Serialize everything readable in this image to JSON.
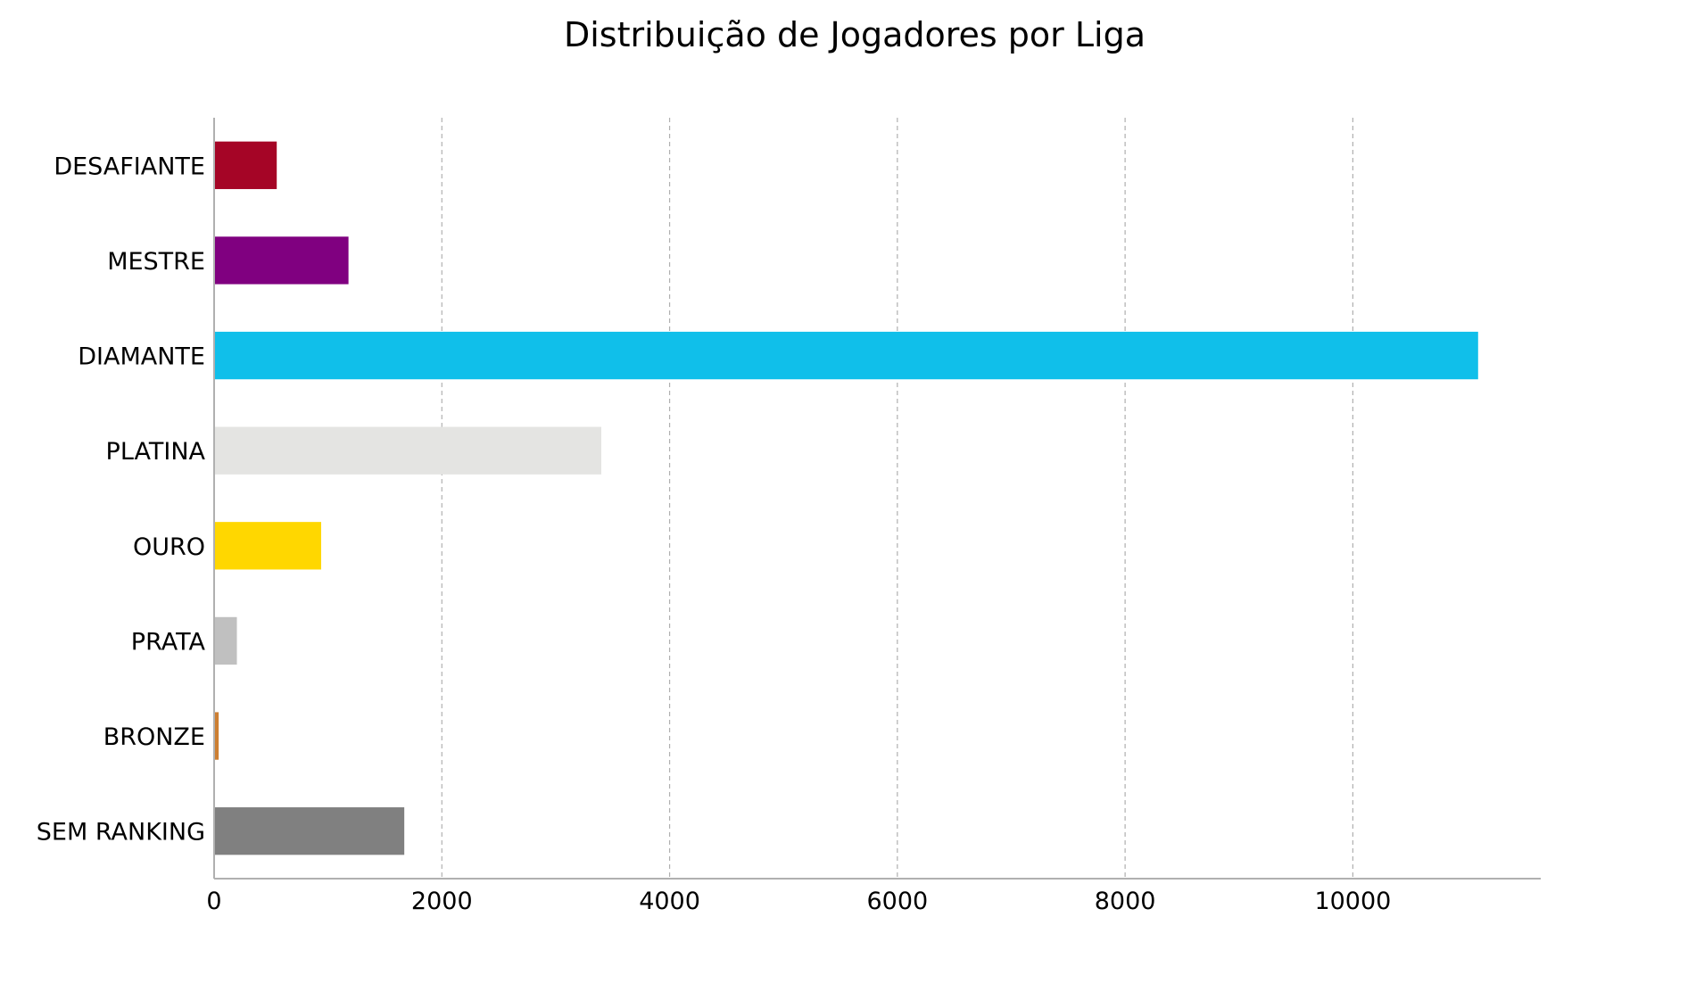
{
  "chart_data": {
    "type": "bar",
    "orientation": "horizontal",
    "title": "Distribuição de Jogadores por Liga",
    "xlabel": "",
    "ylabel": "",
    "categories": [
      "DESAFIANTE",
      "MESTRE",
      "DIAMANTE",
      "PLATINA",
      "OURO",
      "PRATA",
      "BRONZE",
      "SEM RANKING"
    ],
    "values": [
      550,
      1180,
      11100,
      3400,
      940,
      200,
      40,
      1670
    ],
    "colors": [
      "#a50526",
      "#800080",
      "#10bfea",
      "#e4e4e2",
      "#ffd700",
      "#c0c0c0",
      "#cd7f32",
      "#808080"
    ],
    "xlim": [
      0,
      11650
    ],
    "xticks": [
      0,
      2000,
      4000,
      6000,
      8000,
      10000
    ],
    "xtick_labels": [
      "0",
      "2000",
      "4000",
      "6000",
      "8000",
      "10000"
    ],
    "grid": "x-dashed",
    "legend": "none"
  }
}
